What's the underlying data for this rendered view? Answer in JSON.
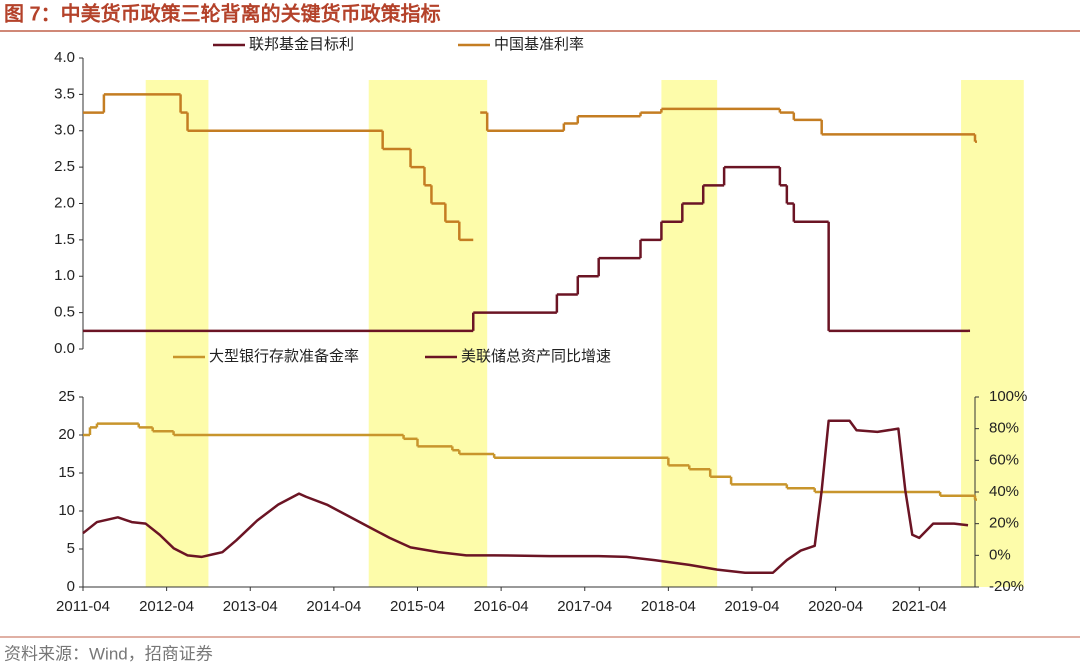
{
  "title": "图 7：中美货币政策三轮背离的关键货币政策指标",
  "source": "资料来源：Wind，招商证券",
  "highlight_periods": [
    [
      "2012-01",
      "2012-10"
    ],
    [
      "2014-09",
      "2016-02"
    ],
    [
      "2018-03",
      "2018-11"
    ],
    [
      "2021-10",
      "2022-07"
    ]
  ],
  "highlight_color": "#fdfcaa",
  "chart_data": [
    {
      "type": "line",
      "legend": "top",
      "xlim": [
        "2011-04",
        "2021-12"
      ],
      "ylim": [
        0,
        4
      ],
      "yticks": [
        {
          "value": 0,
          "label": "0.0"
        },
        0.5,
        {
          "value": 1,
          "label": "1.0"
        },
        1.5,
        {
          "value": 2,
          "label": "2.0"
        },
        2.5,
        {
          "value": 3,
          "label": "3.0"
        },
        3.5,
        {
          "value": 4,
          "label": "4.0"
        }
      ],
      "series": [
        {
          "name": "联邦基金目标利",
          "color": "#6b1424",
          "step": true,
          "x": [
            "2011-04",
            "2015-12",
            "2016-12",
            "2017-03",
            "2017-06",
            "2017-12",
            "2018-03",
            "2018-06",
            "2018-09",
            "2018-12",
            "2019-08",
            "2019-09",
            "2019-10",
            "2020-03",
            "2021-11"
          ],
          "values": [
            0.25,
            0.5,
            0.75,
            1.0,
            1.25,
            1.5,
            1.75,
            2.0,
            2.25,
            2.5,
            2.25,
            2.0,
            1.75,
            0.25,
            0.25
          ]
        },
        {
          "name": "中国基准利率",
          "color": "#c47d22",
          "step": true,
          "x": [
            "2011-04",
            "2011-07",
            "2012-06",
            "2012-07",
            "2014-11",
            "2015-03",
            "2015-05",
            "2015-06",
            "2015-08",
            "2015-10",
            "2015-12",
            "2016-01",
            "2016-02",
            "2017-01",
            "2017-03",
            "2017-12",
            "2018-03",
            "2019-08",
            "2019-10",
            "2020-02",
            "2021-12"
          ],
          "values": [
            3.25,
            3.5,
            3.25,
            3.0,
            2.75,
            2.5,
            2.25,
            2.0,
            1.75,
            1.5,
            null,
            3.25,
            3.0,
            3.1,
            3.2,
            3.25,
            3.3,
            3.25,
            3.15,
            2.95,
            2.85
          ]
        }
      ]
    },
    {
      "type": "line",
      "legend": "top",
      "xlim": [
        "2011-04",
        "2021-12"
      ],
      "xticks": [
        "2011-04",
        "2012-04",
        "2013-04",
        "2014-04",
        "2015-04",
        "2016-04",
        "2017-04",
        "2018-04",
        "2019-04",
        "2020-04",
        "2021-04"
      ],
      "ylim": [
        0,
        25
      ],
      "yticks": [
        0,
        5,
        10,
        15,
        20,
        25
      ],
      "y2lim": [
        -20,
        100
      ],
      "y2ticks": [
        {
          "value": -20,
          "label": "-20%"
        },
        {
          "value": 0,
          "label": "0%"
        },
        {
          "value": 20,
          "label": "20%"
        },
        {
          "value": 40,
          "label": "40%"
        },
        {
          "value": 60,
          "label": "60%"
        },
        {
          "value": 80,
          "label": "80%"
        },
        {
          "value": 100,
          "label": "100%"
        }
      ],
      "series": [
        {
          "name": "大型银行存款准备金率",
          "color": "#c8952c",
          "step": true,
          "x": [
            "2011-04",
            "2011-05",
            "2011-06",
            "2011-12",
            "2012-02",
            "2012-05",
            "2015-02",
            "2015-04",
            "2015-09",
            "2015-10",
            "2016-03",
            "2018-04",
            "2018-07",
            "2018-10",
            "2019-01",
            "2019-09",
            "2020-01",
            "2021-07",
            "2021-12"
          ],
          "values": [
            20.0,
            21.0,
            21.5,
            21.0,
            20.5,
            20.0,
            19.5,
            18.5,
            18.0,
            17.5,
            17.0,
            16.0,
            15.5,
            14.5,
            13.5,
            13.0,
            12.5,
            12.0,
            11.5
          ]
        },
        {
          "name": "美联储总资产同比增速",
          "color": "#6b1424",
          "axis": "y2",
          "x": [
            "2011-04",
            "2011-06",
            "2011-09",
            "2011-11",
            "2012-01",
            "2012-03",
            "2012-05",
            "2012-07",
            "2012-09",
            "2012-11",
            "2012-12",
            "2013-02",
            "2013-05",
            "2013-08",
            "2013-11",
            "2013-12",
            "2014-03",
            "2014-06",
            "2014-09",
            "2014-12",
            "2015-03",
            "2015-07",
            "2015-11",
            "2016-03",
            "2016-11",
            "2017-06",
            "2017-10",
            "2018-02",
            "2018-07",
            "2018-11",
            "2019-03",
            "2019-07",
            "2019-09",
            "2019-11",
            "2020-01",
            "2020-02",
            "2020-03",
            "2020-06",
            "2020-07",
            "2020-10",
            "2021-01",
            "2021-02",
            "2021-03",
            "2021-04",
            "2021-06",
            "2021-09",
            "2021-11"
          ],
          "values": [
            14,
            21,
            24,
            21,
            20,
            13,
            4.5,
            0,
            -1,
            1,
            2,
            9.5,
            22,
            32,
            39,
            37,
            32,
            25,
            18,
            11,
            5,
            2,
            0,
            0,
            -0.5,
            -0.5,
            -1,
            -3,
            -6,
            -9,
            -11,
            -11,
            -3,
            3,
            6,
            41,
            85,
            85,
            79,
            78,
            80,
            41,
            13,
            11,
            20,
            20,
            19
          ]
        }
      ]
    }
  ]
}
